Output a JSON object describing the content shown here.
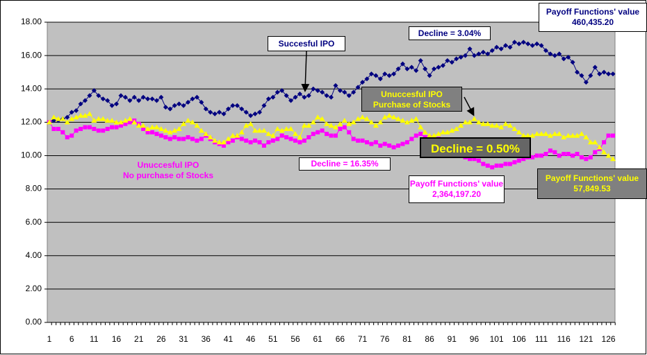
{
  "chart_data": {
    "type": "line",
    "categories": [
      1,
      null,
      null,
      null,
      null,
      6,
      null,
      null,
      null,
      null,
      11,
      null,
      null,
      null,
      null,
      16,
      null,
      null,
      null,
      null,
      21,
      null,
      null,
      null,
      null,
      26,
      null,
      null,
      null,
      null,
      31,
      null,
      null,
      null,
      null,
      36,
      null,
      null,
      null,
      null,
      41,
      null,
      null,
      null,
      null,
      46,
      null,
      null,
      null,
      null,
      51,
      null,
      null,
      null,
      null,
      56,
      null,
      null,
      null,
      null,
      61,
      null,
      null,
      null,
      null,
      66,
      null,
      null,
      null,
      null,
      71,
      null,
      null,
      null,
      null,
      76,
      null,
      null,
      null,
      null,
      81,
      null,
      null,
      null,
      null,
      86,
      null,
      null,
      null,
      null,
      91,
      null,
      null,
      null,
      null,
      96,
      null,
      null,
      null,
      null,
      101,
      null,
      null,
      null,
      null,
      106,
      null,
      null,
      null,
      null,
      111,
      null,
      null,
      null,
      null,
      116,
      null,
      null,
      null,
      null,
      121,
      null,
      null,
      null,
      null,
      126,
      null
    ],
    "series": [
      {
        "color": "#000080",
        "marker": "diamond",
        "values": [
          12.0,
          12.1,
          12.1,
          12.2,
          12.3,
          12.6,
          12.7,
          13.1,
          13.3,
          13.6,
          13.9,
          13.6,
          13.4,
          13.3,
          13.0,
          13.1,
          13.6,
          13.5,
          13.3,
          13.5,
          13.3,
          13.5,
          13.4,
          13.4,
          13.3,
          13.5,
          12.9,
          12.8,
          13.0,
          13.1,
          13.0,
          13.2,
          13.4,
          13.5,
          13.2,
          12.8,
          12.6,
          12.5,
          12.6,
          12.5,
          12.8,
          13.0,
          13.0,
          12.8,
          12.6,
          12.4,
          12.5,
          12.6,
          13.0,
          13.4,
          13.5,
          13.8,
          13.9,
          13.6,
          13.3,
          13.5,
          13.7,
          13.5,
          13.6,
          14.0,
          13.9,
          13.8,
          13.6,
          13.5,
          14.2,
          13.9,
          13.8,
          13.6,
          13.8,
          14.1,
          14.4,
          14.6,
          14.9,
          14.8,
          14.6,
          14.9,
          14.8,
          14.9,
          15.2,
          15.5,
          15.2,
          15.3,
          15.1,
          15.7,
          15.2,
          14.8,
          15.2,
          15.3,
          15.4,
          15.7,
          15.6,
          15.8,
          15.9,
          16.0,
          16.4,
          16.0,
          16.1,
          16.2,
          16.1,
          16.3,
          16.5,
          16.4,
          16.6,
          16.5,
          16.8,
          16.7,
          16.8,
          16.7,
          16.6,
          16.7,
          16.6,
          16.3,
          16.1,
          16.0,
          16.1,
          15.8,
          15.9,
          15.6,
          15.0,
          14.8,
          14.4,
          14.8,
          15.3,
          14.9,
          15.0,
          14.9,
          14.9
        ]
      },
      {
        "color": "#ff00ff",
        "marker": "square",
        "values": [
          12.0,
          11.6,
          11.6,
          11.4,
          11.1,
          11.2,
          11.5,
          11.6,
          11.7,
          11.7,
          11.6,
          11.5,
          11.5,
          11.6,
          11.7,
          11.7,
          11.8,
          11.9,
          12.0,
          12.1,
          11.9,
          11.6,
          11.4,
          11.4,
          11.3,
          11.2,
          11.1,
          11.0,
          11.1,
          11.0,
          11.0,
          11.1,
          11.0,
          10.9,
          11.0,
          11.2,
          11.0,
          10.8,
          10.7,
          10.6,
          10.8,
          10.9,
          11.1,
          11.0,
          10.9,
          10.8,
          10.9,
          10.8,
          10.6,
          10.8,
          10.9,
          11.0,
          11.2,
          11.1,
          11.0,
          10.9,
          10.8,
          10.9,
          11.1,
          11.3,
          11.4,
          11.5,
          11.3,
          11.2,
          11.2,
          11.6,
          11.7,
          11.4,
          11.0,
          10.9,
          10.9,
          10.8,
          10.7,
          10.8,
          10.6,
          10.7,
          10.6,
          10.5,
          10.6,
          10.7,
          10.8,
          11.0,
          11.2,
          11.3,
          11.1,
          11.1,
          11.0,
          11.0,
          10.8,
          10.6,
          10.4,
          10.2,
          10.1,
          9.9,
          9.8,
          9.8,
          9.7,
          9.5,
          9.4,
          9.3,
          9.4,
          9.4,
          9.5,
          9.5,
          9.6,
          9.7,
          9.8,
          9.9,
          9.9,
          10.0,
          10.0,
          10.1,
          10.3,
          10.2,
          10.0,
          10.1,
          10.1,
          10.0,
          10.1,
          9.9,
          9.8,
          9.9,
          10.2,
          10.4,
          10.8,
          11.2,
          11.2
        ]
      },
      {
        "color": "#ffff00",
        "marker": "triangle",
        "values": [
          12.0,
          12.3,
          12.2,
          12.2,
          12.0,
          12.2,
          12.3,
          12.4,
          12.4,
          12.5,
          12.1,
          12.2,
          12.2,
          12.1,
          12.1,
          12.0,
          12.0,
          12.1,
          12.2,
          12.0,
          11.8,
          11.8,
          11.6,
          11.7,
          11.7,
          11.6,
          11.5,
          11.4,
          11.5,
          11.6,
          11.9,
          12.1,
          12.0,
          11.8,
          11.5,
          11.3,
          11.1,
          10.9,
          10.8,
          10.8,
          11.0,
          11.2,
          11.2,
          11.4,
          11.8,
          11.9,
          11.5,
          11.5,
          11.5,
          11.3,
          11.2,
          11.6,
          11.5,
          11.6,
          11.6,
          11.3,
          11.1,
          11.8,
          11.8,
          12.0,
          12.3,
          12.2,
          11.9,
          11.8,
          11.7,
          11.9,
          12.1,
          11.9,
          12.0,
          12.2,
          12.3,
          12.2,
          12.0,
          11.8,
          12.0,
          12.3,
          12.4,
          12.3,
          12.2,
          12.1,
          12.0,
          12.1,
          12.2,
          11.7,
          11.4,
          11.2,
          11.2,
          11.3,
          11.4,
          11.4,
          11.5,
          11.6,
          11.8,
          12.0,
          12.0,
          12.2,
          12.0,
          11.9,
          11.9,
          11.8,
          11.8,
          11.7,
          11.9,
          11.8,
          11.6,
          11.4,
          11.2,
          11.2,
          11.2,
          11.3,
          11.3,
          11.3,
          11.2,
          11.3,
          11.3,
          11.1,
          11.2,
          11.2,
          11.2,
          11.3,
          11.1,
          10.8,
          10.8,
          10.5,
          10.2,
          10.0,
          9.8
        ]
      }
    ],
    "ylim": [
      0,
      18
    ],
    "yticks": [
      {
        "value": 0,
        "label": "0.00"
      },
      {
        "value": 2,
        "label": "2.00"
      },
      {
        "value": 4,
        "label": "4.00"
      },
      {
        "value": 6,
        "label": "6.00"
      },
      {
        "value": 8,
        "label": "8.00"
      },
      {
        "value": 10,
        "label": "10.00"
      },
      {
        "value": 12,
        "label": "12.00"
      },
      {
        "value": 14,
        "label": "14.00"
      },
      {
        "value": 16,
        "label": "16.00"
      },
      {
        "value": 18,
        "label": "18.00"
      }
    ],
    "grid": true,
    "plot_background": "#c0c0c0",
    "annotations": [
      [
        "Succesful IPO"
      ],
      [
        "Decline = 3.04%"
      ],
      [
        "Payoff Functions' value",
        "460,435.20"
      ],
      [
        "Unuccesful IPO",
        "Purchase of Stocks"
      ],
      [
        "Decline = 0.50%"
      ],
      [
        "Unuccesful IPO",
        "No purchase of Stocks"
      ],
      [
        "Decline = 16.35%"
      ],
      [
        "Payoff Functions' value",
        "2,364,197.20"
      ],
      [
        "Payoff Functions' value",
        "57,849.53"
      ]
    ]
  }
}
